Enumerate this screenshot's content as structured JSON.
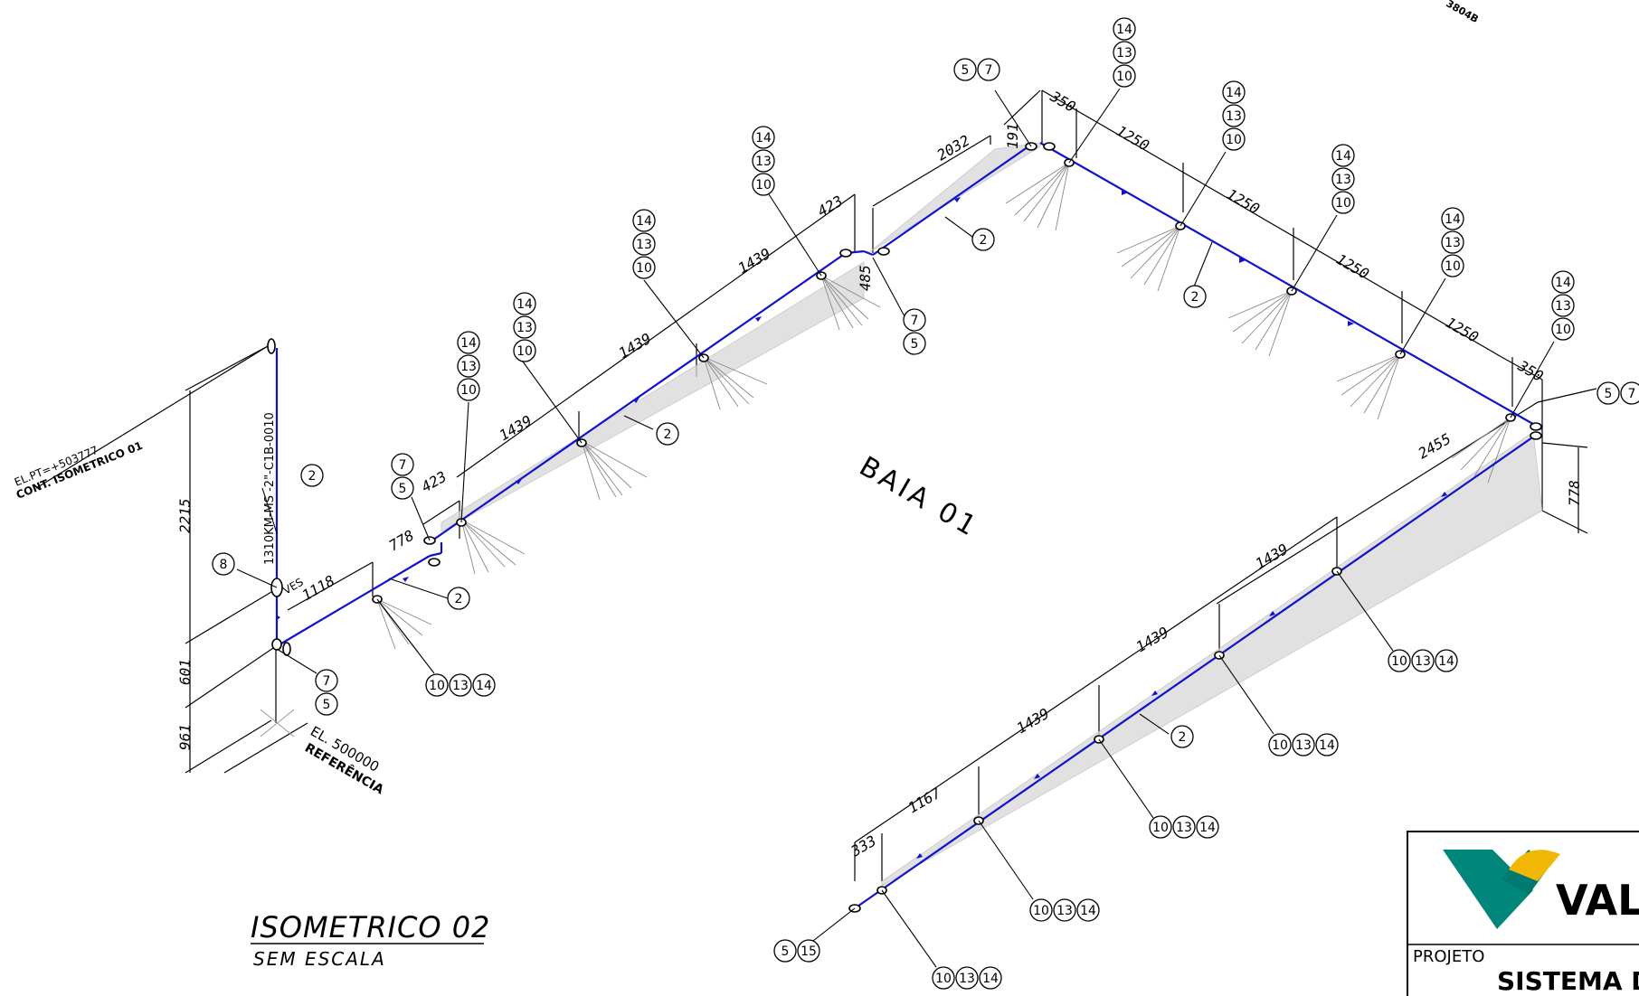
{
  "header": {
    "corner_code": "3804B"
  },
  "title_block": {
    "company": "VAL",
    "project_label": "PROJETO",
    "project_name": "SISTEMA DE"
  },
  "drawing": {
    "title": "ISOMETRICO 02",
    "subtitle": "SEM ESCALA",
    "area_label": "BAIA 01",
    "continuation_top": "EL.PT=+503777",
    "continuation_bottom": "CONT. ISOMETRICO 01",
    "line_number": "1310KM-MS -2\"-C1B-0010",
    "ves_label": "VES",
    "elevation_value": "EL. 500000",
    "elevation_label": "REFERÊNCIA"
  },
  "dimensions": [
    "2215",
    "601",
    "961",
    "1118",
    "778",
    "423",
    "1439",
    "1439",
    "1439",
    "423",
    "485",
    "2032",
    "191",
    "350",
    "1250",
    "1250",
    "1250",
    "1250",
    "350",
    "778",
    "2455",
    "1439",
    "1439",
    "1439",
    "1167",
    "333"
  ],
  "callouts": [
    "2",
    "5",
    "7",
    "8",
    "10",
    "13",
    "14",
    "15"
  ]
}
